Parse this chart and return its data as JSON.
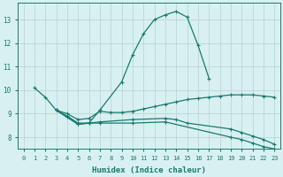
{
  "xlabel": "Humidex (Indice chaleur)",
  "bg_color": "#d8f0f0",
  "grid_color": "#b8d8d8",
  "line_color": "#1a7a6e",
  "xlim": [
    -0.5,
    23.5
  ],
  "ylim": [
    7.5,
    13.7
  ],
  "xticks": [
    0,
    1,
    2,
    3,
    4,
    5,
    6,
    7,
    8,
    9,
    10,
    11,
    12,
    13,
    14,
    15,
    16,
    17,
    18,
    19,
    20,
    21,
    22,
    23
  ],
  "yticks": [
    8,
    9,
    10,
    11,
    12,
    13
  ],
  "lines": [
    {
      "x": [
        1,
        2,
        3,
        4,
        5,
        6,
        7,
        9,
        10,
        11,
        12,
        13,
        14,
        15,
        16,
        17
      ],
      "y": [
        10.1,
        9.7,
        9.15,
        8.9,
        8.6,
        8.6,
        9.15,
        10.35,
        11.5,
        12.4,
        13.0,
        13.2,
        13.35,
        13.1,
        11.9,
        10.5
      ]
    },
    {
      "x": [
        3,
        4,
        5,
        6,
        7,
        8,
        9,
        10,
        11,
        12,
        13,
        14,
        15,
        16,
        17,
        18,
        19,
        20,
        21,
        22,
        23
      ],
      "y": [
        9.15,
        9.0,
        8.75,
        8.8,
        9.1,
        9.05,
        9.05,
        9.1,
        9.2,
        9.3,
        9.4,
        9.5,
        9.6,
        9.65,
        9.7,
        9.75,
        9.8,
        9.8,
        9.8,
        9.75,
        9.7
      ]
    },
    {
      "x": [
        3,
        4,
        5,
        6,
        7,
        10,
        13,
        14,
        15,
        19,
        20,
        21,
        22,
        23
      ],
      "y": [
        9.15,
        8.85,
        8.55,
        8.6,
        8.65,
        8.75,
        8.8,
        8.75,
        8.6,
        8.35,
        8.2,
        8.05,
        7.9,
        7.7
      ]
    },
    {
      "x": [
        3,
        5,
        6,
        7,
        10,
        13,
        19,
        20,
        21,
        22,
        23
      ],
      "y": [
        9.15,
        8.55,
        8.6,
        8.6,
        8.6,
        8.65,
        8.0,
        7.9,
        7.75,
        7.6,
        7.5
      ]
    }
  ],
  "marker": "+",
  "marker_size": 3.5,
  "linewidth": 0.9,
  "tick_fontsize": 5.5,
  "label_fontsize": 6.5
}
